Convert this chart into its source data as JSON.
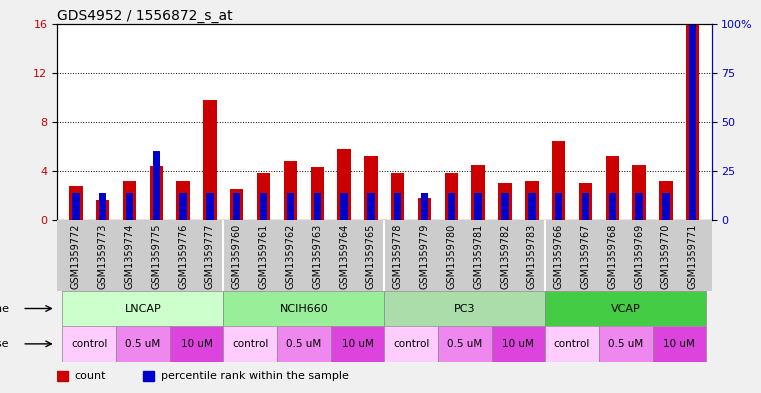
{
  "title": "GDS4952 / 1556872_s_at",
  "samples": [
    "GSM1359772",
    "GSM1359773",
    "GSM1359774",
    "GSM1359775",
    "GSM1359776",
    "GSM1359777",
    "GSM1359760",
    "GSM1359761",
    "GSM1359762",
    "GSM1359763",
    "GSM1359764",
    "GSM1359765",
    "GSM1359778",
    "GSM1359779",
    "GSM1359780",
    "GSM1359781",
    "GSM1359782",
    "GSM1359783",
    "GSM1359766",
    "GSM1359767",
    "GSM1359768",
    "GSM1359769",
    "GSM1359770",
    "GSM1359771"
  ],
  "count_values": [
    2.8,
    1.6,
    3.2,
    4.4,
    3.2,
    9.8,
    2.5,
    3.8,
    4.8,
    4.3,
    5.8,
    5.2,
    3.8,
    1.8,
    3.8,
    4.5,
    3.0,
    3.2,
    6.4,
    3.0,
    5.2,
    4.5,
    3.2,
    16.0
  ],
  "percentile_values": [
    2.2,
    2.2,
    2.2,
    5.6,
    2.2,
    2.2,
    2.2,
    2.2,
    2.2,
    2.2,
    2.2,
    2.2,
    2.2,
    2.2,
    2.2,
    2.2,
    2.2,
    2.2,
    2.2,
    2.2,
    2.2,
    2.2,
    2.2,
    16.0
  ],
  "bar_width": 0.5,
  "count_color": "#cc0000",
  "percentile_color": "#0000cc",
  "ylim_left": [
    0,
    16
  ],
  "ylim_right": [
    0,
    100
  ],
  "yticks_left": [
    0,
    4,
    8,
    12,
    16
  ],
  "yticks_right": [
    0,
    25,
    50,
    75,
    100
  ],
  "ytick_labels_right": [
    "0",
    "25",
    "50",
    "75",
    "100%"
  ],
  "cell_groups": [
    {
      "label": "LNCAP",
      "start": 0,
      "end": 5,
      "color": "#ccffcc"
    },
    {
      "label": "NCIH660",
      "start": 6,
      "end": 11,
      "color": "#99ee99"
    },
    {
      "label": "PC3",
      "start": 12,
      "end": 17,
      "color": "#aaddaa"
    },
    {
      "label": "VCAP",
      "start": 18,
      "end": 23,
      "color": "#44cc44"
    }
  ],
  "dose_groups": [
    {
      "label": "control",
      "start": 0,
      "end": 1,
      "color": "#ffccff"
    },
    {
      "label": "0.5 uM",
      "start": 2,
      "end": 3,
      "color": "#ee88ee"
    },
    {
      "label": "10 uM",
      "start": 4,
      "end": 5,
      "color": "#dd44dd"
    },
    {
      "label": "control",
      "start": 6,
      "end": 7,
      "color": "#ffccff"
    },
    {
      "label": "0.5 uM",
      "start": 8,
      "end": 9,
      "color": "#ee88ee"
    },
    {
      "label": "10 uM",
      "start": 10,
      "end": 11,
      "color": "#dd44dd"
    },
    {
      "label": "control",
      "start": 12,
      "end": 13,
      "color": "#ffccff"
    },
    {
      "label": "0.5 uM",
      "start": 14,
      "end": 15,
      "color": "#ee88ee"
    },
    {
      "label": "10 uM",
      "start": 16,
      "end": 17,
      "color": "#dd44dd"
    },
    {
      "label": "control",
      "start": 18,
      "end": 19,
      "color": "#ffccff"
    },
    {
      "label": "0.5 uM",
      "start": 20,
      "end": 21,
      "color": "#ee88ee"
    },
    {
      "label": "10 uM",
      "start": 22,
      "end": 23,
      "color": "#dd44dd"
    }
  ],
  "fig_bg_color": "#f0f0f0",
  "plot_bg_color": "#ffffff",
  "xtick_area_color": "#cccccc",
  "title_fontsize": 10,
  "tick_fontsize": 7,
  "label_fontsize": 8
}
